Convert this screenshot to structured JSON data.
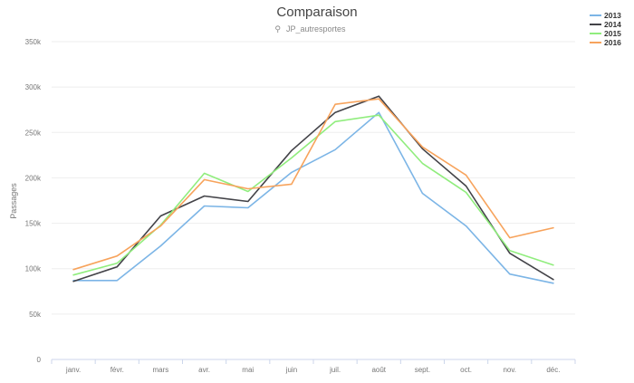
{
  "chart_data": {
    "type": "line",
    "title": "Comparaison",
    "subtitle": "JP_autresportes",
    "subtitle_icon": "filter-icon",
    "xlabel": "",
    "ylabel": "Passages",
    "categories": [
      "janv.",
      "févr.",
      "mars",
      "avr.",
      "mai",
      "juin",
      "juil.",
      "août",
      "sept.",
      "oct.",
      "nov.",
      "déc."
    ],
    "y_ticks": [
      0,
      50000,
      100000,
      150000,
      200000,
      250000,
      300000,
      350000
    ],
    "y_tick_labels": [
      "0",
      "50k",
      "100k",
      "150k",
      "200k",
      "250k",
      "300k",
      "350k"
    ],
    "ylim": [
      0,
      350000
    ],
    "grid": true,
    "legend_position": "top-right",
    "series": [
      {
        "name": "2013",
        "color": "#7cb5e6",
        "values": [
          87000,
          87000,
          125000,
          169000,
          167000,
          206000,
          231000,
          272000,
          183000,
          147000,
          94000,
          84000
        ]
      },
      {
        "name": "2014",
        "color": "#434348",
        "values": [
          86000,
          102000,
          158000,
          180000,
          174000,
          230000,
          272000,
          290000,
          232000,
          191000,
          117000,
          88000
        ]
      },
      {
        "name": "2015",
        "color": "#90ed7d",
        "values": [
          93000,
          106000,
          148000,
          205000,
          185000,
          222000,
          262000,
          269000,
          216000,
          184000,
          120000,
          104000
        ]
      },
      {
        "name": "2016",
        "color": "#f7a35c",
        "values": [
          99000,
          114000,
          147000,
          198000,
          188000,
          193000,
          281000,
          287000,
          234000,
          203000,
          134000,
          145000
        ]
      }
    ]
  }
}
